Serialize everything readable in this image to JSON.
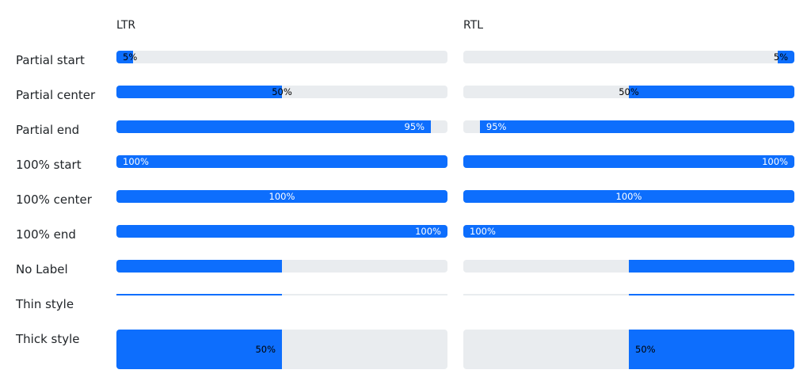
{
  "columns": {
    "ltr": "LTR",
    "rtl": "RTL"
  },
  "colors": {
    "fill": "#0d6efd",
    "track": "#e9ecef",
    "text_on_fill": "#ffffff",
    "text_on_track": "#000000"
  },
  "rows": [
    {
      "label": "Partial start",
      "value_percent": 5,
      "label_text": "5%",
      "label_position": "start",
      "style": "normal"
    },
    {
      "label": "Partial center",
      "value_percent": 50,
      "label_text": "50%",
      "label_position": "center",
      "style": "normal"
    },
    {
      "label": "Partial end",
      "value_percent": 95,
      "label_text": "95%",
      "label_position": "end",
      "style": "normal"
    },
    {
      "label": "100% start",
      "value_percent": 100,
      "label_text": "100%",
      "label_position": "start",
      "style": "normal"
    },
    {
      "label": "100% center",
      "value_percent": 100,
      "label_text": "100%",
      "label_position": "center",
      "style": "normal"
    },
    {
      "label": "100% end",
      "value_percent": 100,
      "label_text": "100%",
      "label_position": "end",
      "style": "normal"
    },
    {
      "label": "No Label",
      "value_percent": 50,
      "label_text": "",
      "label_position": "none",
      "style": "normal"
    },
    {
      "label": "Thin style",
      "value_percent": 50,
      "label_text": "",
      "label_position": "none",
      "style": "thin"
    },
    {
      "label": "Thick style",
      "value_percent": 50,
      "label_text": "50%",
      "label_position": "end",
      "style": "thick"
    }
  ]
}
